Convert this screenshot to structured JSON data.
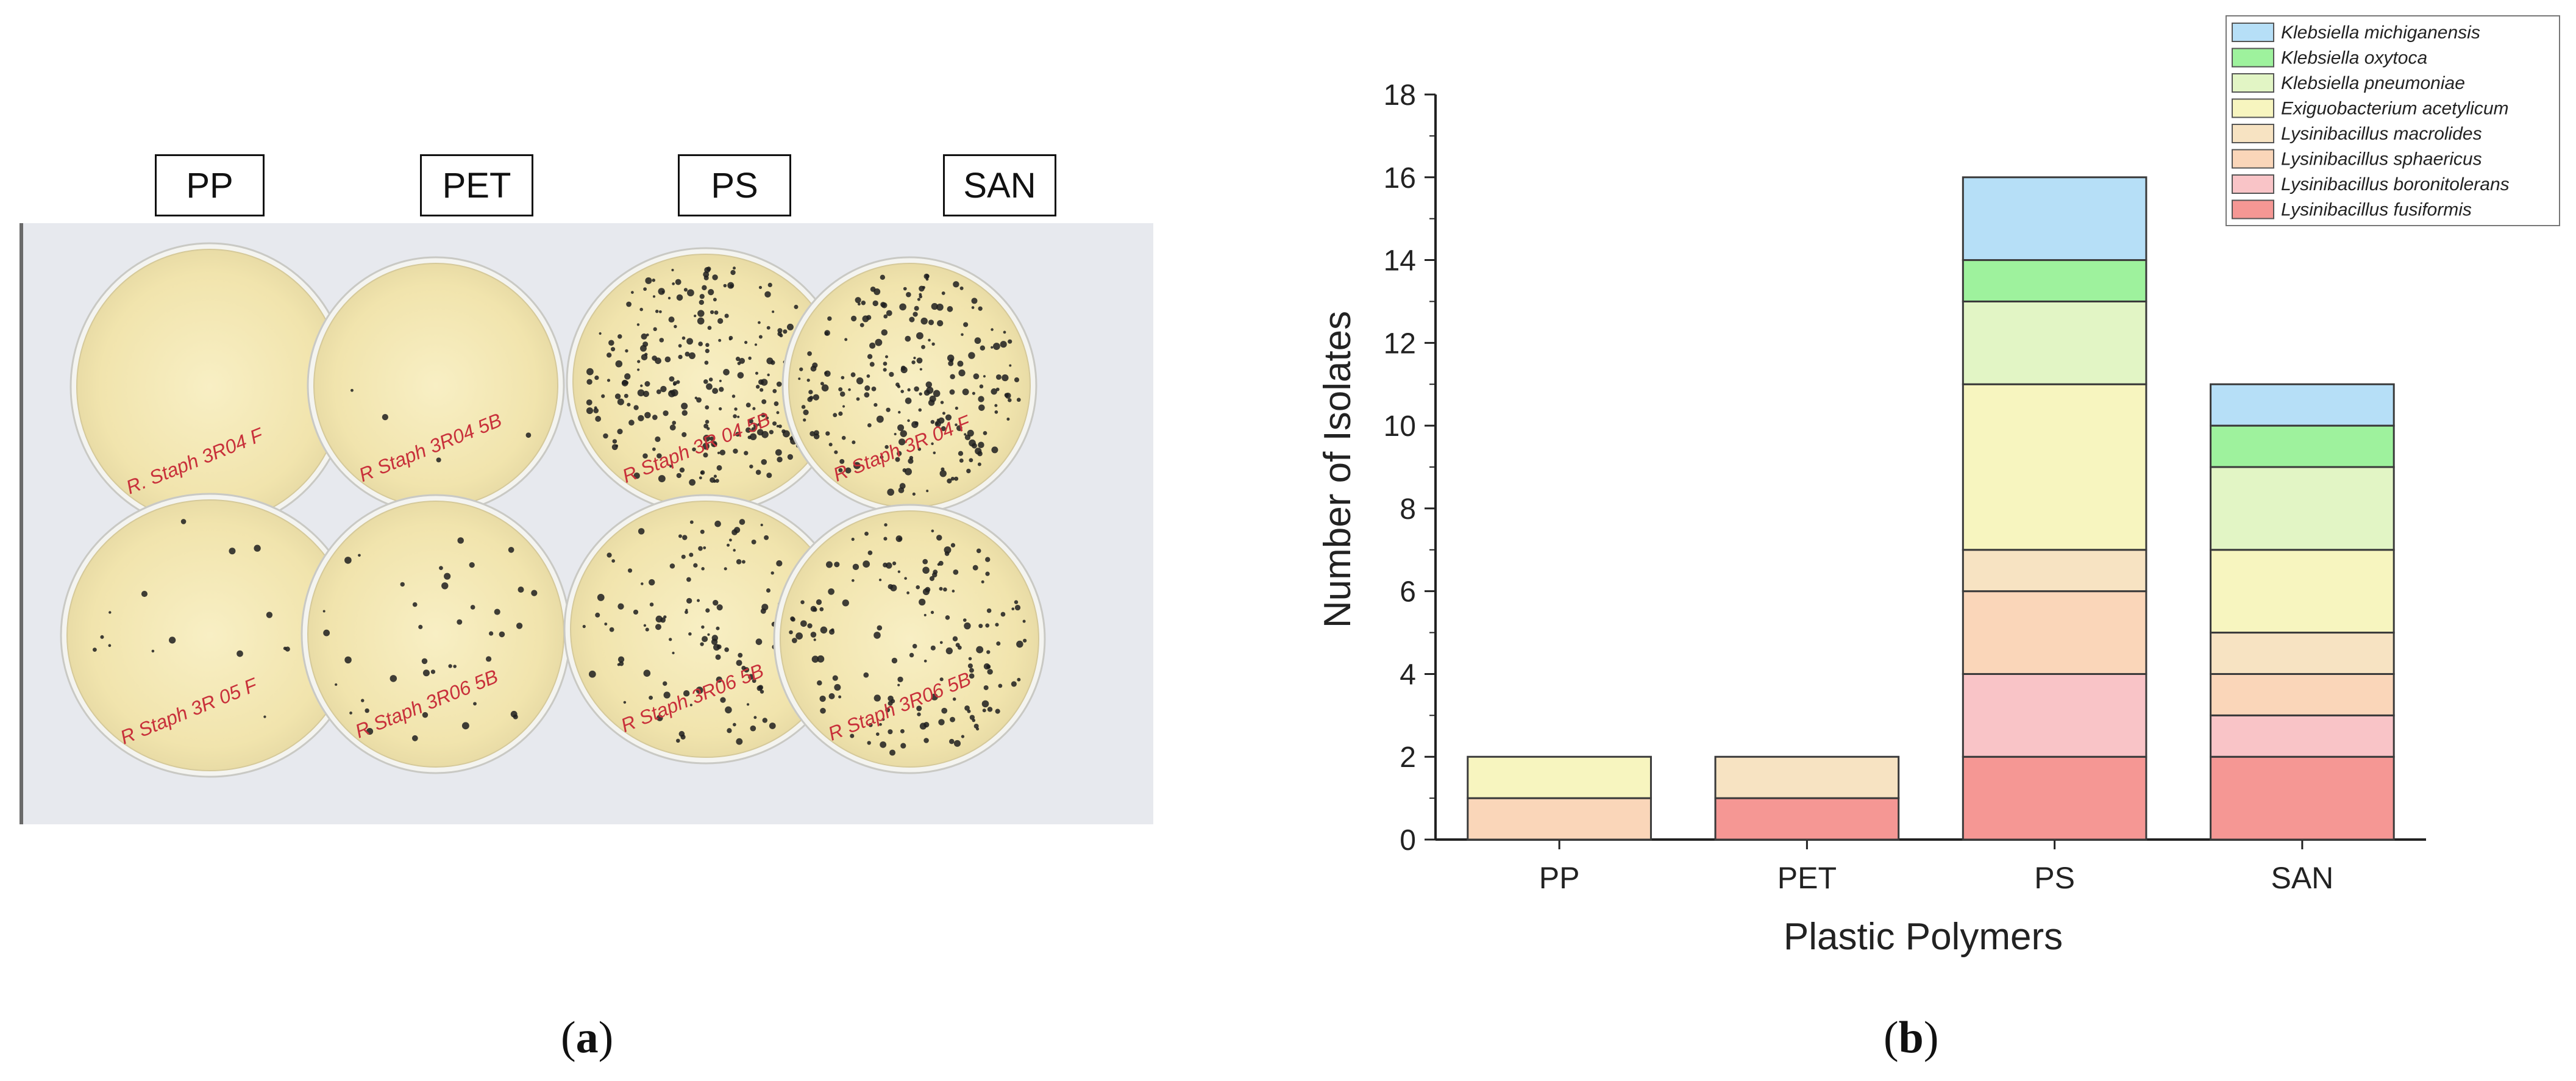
{
  "panel_a": {
    "labels": [
      "PP",
      "PET",
      "PS",
      "SAN"
    ],
    "caption_letter": "a",
    "plate_writing": [
      "R. Staph 3R04 F",
      "R Staph 3R04 5B",
      "R Staph 3R 04 5B",
      "R Staph 3R 04 F",
      "R Staph 3R 05 F",
      "R Staph 3R06 5B",
      "R Staph 3R06 5B",
      "R Staph 3R06 5B"
    ]
  },
  "panel_b": {
    "caption_letter": "b"
  },
  "chart_data": {
    "type": "bar",
    "stacked": true,
    "categories": [
      "PP",
      "PET",
      "PS",
      "SAN"
    ],
    "xlabel": "Plastic Polymers",
    "ylabel": "Number of Isolates",
    "ylim": [
      0,
      18
    ],
    "yticks": [
      0,
      2,
      4,
      6,
      8,
      10,
      12,
      14,
      16,
      18
    ],
    "legend_position": "top-right",
    "series": [
      {
        "name": "Lysinibacillus fusiformis",
        "color": "#f59794",
        "values": [
          0,
          1,
          2,
          2
        ]
      },
      {
        "name": "Lysinibacillus boronitolerans",
        "color": "#f9c4c7",
        "values": [
          0,
          0,
          2,
          1
        ]
      },
      {
        "name": "Lysinibacillus sphaericus",
        "color": "#fad6b9",
        "values": [
          1,
          0,
          2,
          1
        ]
      },
      {
        "name": "Lysinibacillus macrolides",
        "color": "#f7e3c2",
        "values": [
          0,
          1,
          1,
          1
        ]
      },
      {
        "name": "Exiguobacterium acetylicum",
        "color": "#f7f5bf",
        "values": [
          1,
          0,
          4,
          2
        ]
      },
      {
        "name": "Klebsiella pneumoniae",
        "color": "#e2f5c5",
        "values": [
          0,
          0,
          2,
          2
        ]
      },
      {
        "name": "Klebsiella oxytoca",
        "color": "#9ef29d",
        "values": [
          0,
          0,
          1,
          1
        ]
      },
      {
        "name": "Klebsiella michiganensis",
        "color": "#b6dff7",
        "values": [
          0,
          0,
          2,
          1
        ]
      }
    ]
  }
}
